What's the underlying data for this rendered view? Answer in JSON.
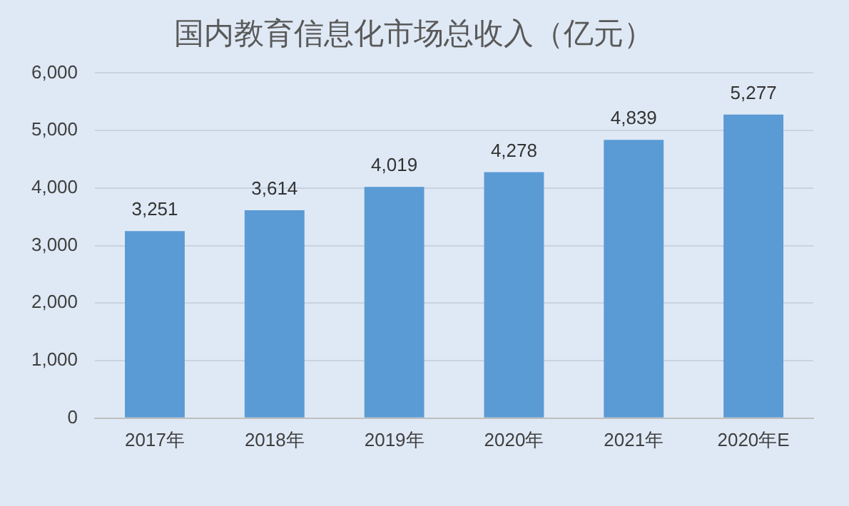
{
  "chart_data": {
    "type": "bar",
    "title": "国内教育信息化市场总收入（亿元）",
    "categories": [
      "2017年",
      "2018年",
      "2019年",
      "2020年",
      "2021年",
      "2020年E"
    ],
    "values": [
      3251,
      3614,
      4019,
      4278,
      4839,
      5277
    ],
    "color": "#5b9bd5",
    "ylim": [
      0,
      6000
    ],
    "yticks": [
      {
        "value": 0,
        "label": "0"
      },
      {
        "value": 1000,
        "label": "1,000"
      },
      {
        "value": 2000,
        "label": "2,000"
      },
      {
        "value": 3000,
        "label": "3,000"
      },
      {
        "value": 4000,
        "label": "4,000"
      },
      {
        "value": 5000,
        "label": "5,000"
      },
      {
        "value": 6000,
        "label": "6,000"
      }
    ],
    "value_labels": [
      "3,251",
      "3,614",
      "4,019",
      "4,278",
      "4,839",
      "5,277"
    ],
    "grid": "y",
    "legend": false
  }
}
